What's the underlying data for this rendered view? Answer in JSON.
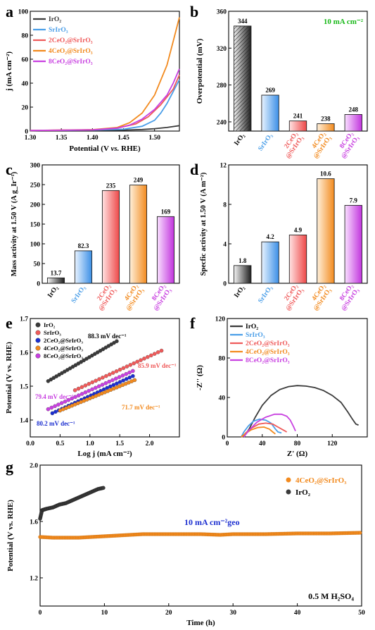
{
  "colors": {
    "IrO2": "#3a3a3a",
    "SrIrO3": "#4a9ee8",
    "2CeO2": "#ef5a5a",
    "4CeO2": "#f28a1e",
    "8CeO2": "#c840e0",
    "accent_green": "#18b818",
    "accent_blue": "#1c2fd0"
  },
  "chart_data": [
    {
      "id": "a",
      "panel_label": "a",
      "type": "line",
      "xlabel_parts": [
        "Potential (V ",
        "vs.",
        " RHE)"
      ],
      "ylabel": "j (mA cm⁻²)",
      "xlim": [
        1.3,
        1.54
      ],
      "ylim": [
        0,
        100
      ],
      "xticks": [
        "1.30",
        "1.35",
        "1.40",
        "1.45",
        "1.50"
      ],
      "xtick_values": [
        1.3,
        1.35,
        1.4,
        1.45,
        1.5
      ],
      "yticks": [
        "0",
        "20",
        "40",
        "60",
        "80",
        "100"
      ],
      "ytick_values": [
        0,
        20,
        40,
        60,
        80,
        100
      ],
      "legend_position": "top-left",
      "series": [
        {
          "name": "IrO₂",
          "color_key": "IrO2",
          "x": [
            1.3,
            1.4,
            1.45,
            1.48,
            1.5,
            1.52,
            1.54
          ],
          "y": [
            0.5,
            0.6,
            0.8,
            1.3,
            2.0,
            3.0,
            4.5
          ]
        },
        {
          "name": "SrIrO₃",
          "color_key": "SrIrO3",
          "x": [
            1.3,
            1.4,
            1.45,
            1.48,
            1.5,
            1.51,
            1.52,
            1.53,
            1.54
          ],
          "y": [
            0.5,
            0.8,
            1.5,
            4,
            9,
            15,
            23,
            33,
            43
          ]
        },
        {
          "name": "2CeO₂@SrIrO₃",
          "color_key": "2CeO2",
          "x": [
            1.3,
            1.4,
            1.44,
            1.47,
            1.49,
            1.51,
            1.53,
            1.54
          ],
          "y": [
            0.5,
            1,
            2.5,
            6,
            12,
            22,
            35,
            47
          ]
        },
        {
          "name": "4CeO₂@SrIrO₃",
          "color_key": "4CeO2",
          "x": [
            1.3,
            1.4,
            1.44,
            1.46,
            1.48,
            1.5,
            1.52,
            1.53,
            1.54
          ],
          "y": [
            0.5,
            1.2,
            3,
            7,
            15,
            30,
            55,
            75,
            95
          ]
        },
        {
          "name": "8CeO₂@SrIrO₃",
          "color_key": "8CeO2",
          "x": [
            1.3,
            1.4,
            1.44,
            1.46,
            1.48,
            1.5,
            1.52,
            1.53,
            1.54
          ],
          "y": [
            0.5,
            1,
            2.5,
            5,
            10,
            18,
            30,
            40,
            52
          ]
        }
      ]
    },
    {
      "id": "b",
      "panel_label": "b",
      "type": "bar",
      "ylabel": "Overpotential (mV)",
      "annotation": "10 mA cm⁻²",
      "ylim": [
        230,
        360
      ],
      "yticks": [
        "240",
        "280",
        "320",
        "360"
      ],
      "ytick_values": [
        240,
        280,
        320,
        360
      ],
      "categories": [
        "IrO₂",
        "SrIrO₃",
        "2CeO₂ @SrIrO₃",
        "4CeO₂ @SrIrO₃",
        "8CeO₂ @SrIrO₃"
      ],
      "values": [
        344,
        269,
        241,
        238,
        248
      ],
      "value_labels": [
        "344",
        "269",
        "241",
        "238",
        "248"
      ]
    },
    {
      "id": "c",
      "panel_label": "c",
      "type": "bar",
      "ylabel": "Mass activity at 1.50 V (A g_Ir⁻¹)",
      "ylim": [
        0,
        300
      ],
      "yticks": [
        "0",
        "50",
        "100",
        "150",
        "200",
        "250",
        "300"
      ],
      "ytick_values": [
        0,
        50,
        100,
        150,
        200,
        250,
        300
      ],
      "categories": [
        "IrO₂",
        "SrIrO₃",
        "2CeO₂ @SrIrO₃",
        "4CeO₂ @SrIrO₃",
        "8CeO₂ @SrIrO₃"
      ],
      "values": [
        13.7,
        82.3,
        235,
        249,
        169
      ],
      "value_labels": [
        "13.7",
        "82.3",
        "235",
        "249",
        "169"
      ]
    },
    {
      "id": "d",
      "panel_label": "d",
      "type": "bar",
      "ylabel": "Specfic activity at 1.50 V (A m⁻²)",
      "ylim": [
        0,
        12
      ],
      "yticks": [
        "0",
        "4",
        "8",
        "12"
      ],
      "ytick_values": [
        0,
        4,
        8,
        12
      ],
      "categories": [
        "IrO₂",
        "SrIrO₃",
        "2CeO₂ @SrIrO₃",
        "4CeO₂ @SrIrO₃",
        "8CeO₂ @SrIrO₃"
      ],
      "values": [
        1.8,
        4.2,
        4.9,
        10.6,
        7.9
      ],
      "value_labels": [
        "1.8",
        "4.2",
        "4.9",
        "10.6",
        "7.9"
      ]
    },
    {
      "id": "e",
      "panel_label": "e",
      "type": "scatter",
      "xlabel": "Log j (mA cm⁻²)",
      "ylabel": "Potential (V vs. RHE)",
      "xlim": [
        0,
        2.5
      ],
      "ylim": [
        1.35,
        1.7
      ],
      "xticks": [
        "0.0",
        "0.5",
        "1.0",
        "1.5",
        "2.0"
      ],
      "xtick_values": [
        0,
        0.5,
        1.0,
        1.5,
        2.0
      ],
      "yticks": [
        "1.4",
        "1.5",
        "1.6",
        "1.7"
      ],
      "ytick_values": [
        1.4,
        1.5,
        1.6,
        1.7
      ],
      "legend_position": "top-left",
      "series": [
        {
          "name": "IrO₂",
          "color_key": "IrO2",
          "x_range": [
            0.3,
            1.45
          ],
          "y_range": [
            1.515,
            1.633
          ],
          "tafel": "88.3 mV dec⁻¹"
        },
        {
          "name": "SrIrO₃",
          "color_key": "2CeO2",
          "x_range": [
            0.75,
            2.2
          ],
          "y_range": [
            1.488,
            1.605
          ],
          "tafel": "85.9 mV dec⁻¹"
        },
        {
          "name": "2CeO₂@SrIrO₃",
          "color_key": "accent_blue",
          "x_range": [
            0.37,
            1.72
          ],
          "y_range": [
            1.42,
            1.53
          ],
          "tafel": "80.2 mV dec⁻¹"
        },
        {
          "name": "4CeO₂@SrIrO₃",
          "color_key": "4CeO2",
          "x_range": [
            0.5,
            1.75
          ],
          "y_range": [
            1.428,
            1.518
          ],
          "tafel": "71.7 mV dec⁻¹"
        },
        {
          "name": "8CeO₂@SrIrO₃",
          "color_key": "8CeO2",
          "x_range": [
            0.3,
            1.72
          ],
          "y_range": [
            1.432,
            1.545
          ],
          "tafel": "79.4 mV dec⁻¹"
        }
      ]
    },
    {
      "id": "f",
      "panel_label": "f",
      "type": "line",
      "xlabel": "Z' (Ω)",
      "ylabel": "-Z'' (Ω)",
      "xlim": [
        0,
        160
      ],
      "ylim": [
        0,
        120
      ],
      "xticks": [
        "0",
        "40",
        "80",
        "120"
      ],
      "xtick_values": [
        0,
        40,
        80,
        120
      ],
      "yticks": [
        "0",
        "40",
        "80",
        "120"
      ],
      "ytick_values": [
        0,
        40,
        80,
        120
      ],
      "legend_position": "top-left",
      "series": [
        {
          "name": "IrO₂",
          "color_key": "IrO2",
          "x": [
            19,
            25,
            32,
            40,
            50,
            60,
            70,
            80,
            90,
            100,
            110,
            120,
            130,
            138,
            143,
            147,
            150
          ],
          "y": [
            0,
            8,
            20,
            32,
            42,
            48,
            51,
            52,
            51.5,
            50,
            47,
            42,
            35,
            25,
            18,
            13,
            12
          ]
        },
        {
          "name": "SrIrO₃",
          "color_key": "SrIrO3",
          "x": [
            16,
            19,
            24,
            30,
            37,
            44,
            50,
            55,
            58,
            62
          ],
          "y": [
            0,
            5,
            11,
            16,
            18,
            17,
            14,
            8,
            5,
            4
          ]
        },
        {
          "name": "2CeO₂@SrIrO₃",
          "color_key": "2CeO2",
          "x": [
            17,
            21,
            28,
            36,
            44,
            52,
            58,
            64,
            68
          ],
          "y": [
            0,
            4,
            9,
            13,
            14,
            13,
            10,
            7,
            5
          ]
        },
        {
          "name": "4CeO₂@SrIrO₃",
          "color_key": "4CeO2",
          "x": [
            16,
            20,
            27,
            35,
            42,
            48,
            52,
            55
          ],
          "y": [
            0,
            3,
            7,
            9.5,
            10,
            8,
            5,
            3
          ]
        },
        {
          "name": "8CeO₂@SrIrO₃",
          "color_key": "8CeO2",
          "x": [
            19,
            25,
            34,
            44,
            54,
            62,
            68,
            72,
            76,
            78
          ],
          "y": [
            0,
            7,
            15,
            20,
            23,
            23,
            21,
            17,
            10,
            6
          ]
        }
      ]
    },
    {
      "id": "g",
      "panel_label": "g",
      "type": "scatter",
      "xlabel": "Time (h)",
      "ylabel": "Potential (V vs. RHE)",
      "annotation": "10 mA cm⁻²geo",
      "electrolyte": "0.5 M H₂SO₄",
      "xlim": [
        0,
        50
      ],
      "ylim": [
        1.0,
        2.0
      ],
      "xticks": [
        "0",
        "10",
        "20",
        "30",
        "40",
        "50"
      ],
      "xtick_values": [
        0,
        10,
        20,
        30,
        40,
        50
      ],
      "yticks": [
        "1.2",
        "1.6",
        "2.0"
      ],
      "ytick_values": [
        1.2,
        1.6,
        2.0
      ],
      "legend_position": "top-right",
      "series": [
        {
          "name": "4CeO₂@SrIrO₃",
          "color_key": "4CeO2",
          "x": [
            0,
            2,
            4,
            6,
            8,
            10,
            12,
            14,
            16,
            20,
            25,
            28,
            30,
            35,
            40,
            45,
            50
          ],
          "y": [
            1.49,
            1.485,
            1.485,
            1.485,
            1.49,
            1.495,
            1.5,
            1.505,
            1.51,
            1.51,
            1.51,
            1.505,
            1.51,
            1.51,
            1.515,
            1.515,
            1.52
          ]
        },
        {
          "name": "IrO₂",
          "color_key": "IrO2",
          "x": [
            0,
            0.3,
            1,
            2,
            3,
            4,
            5,
            6,
            7,
            8,
            9,
            10
          ],
          "y": [
            1.62,
            1.68,
            1.69,
            1.7,
            1.72,
            1.73,
            1.75,
            1.77,
            1.79,
            1.81,
            1.83,
            1.84
          ]
        }
      ]
    }
  ]
}
